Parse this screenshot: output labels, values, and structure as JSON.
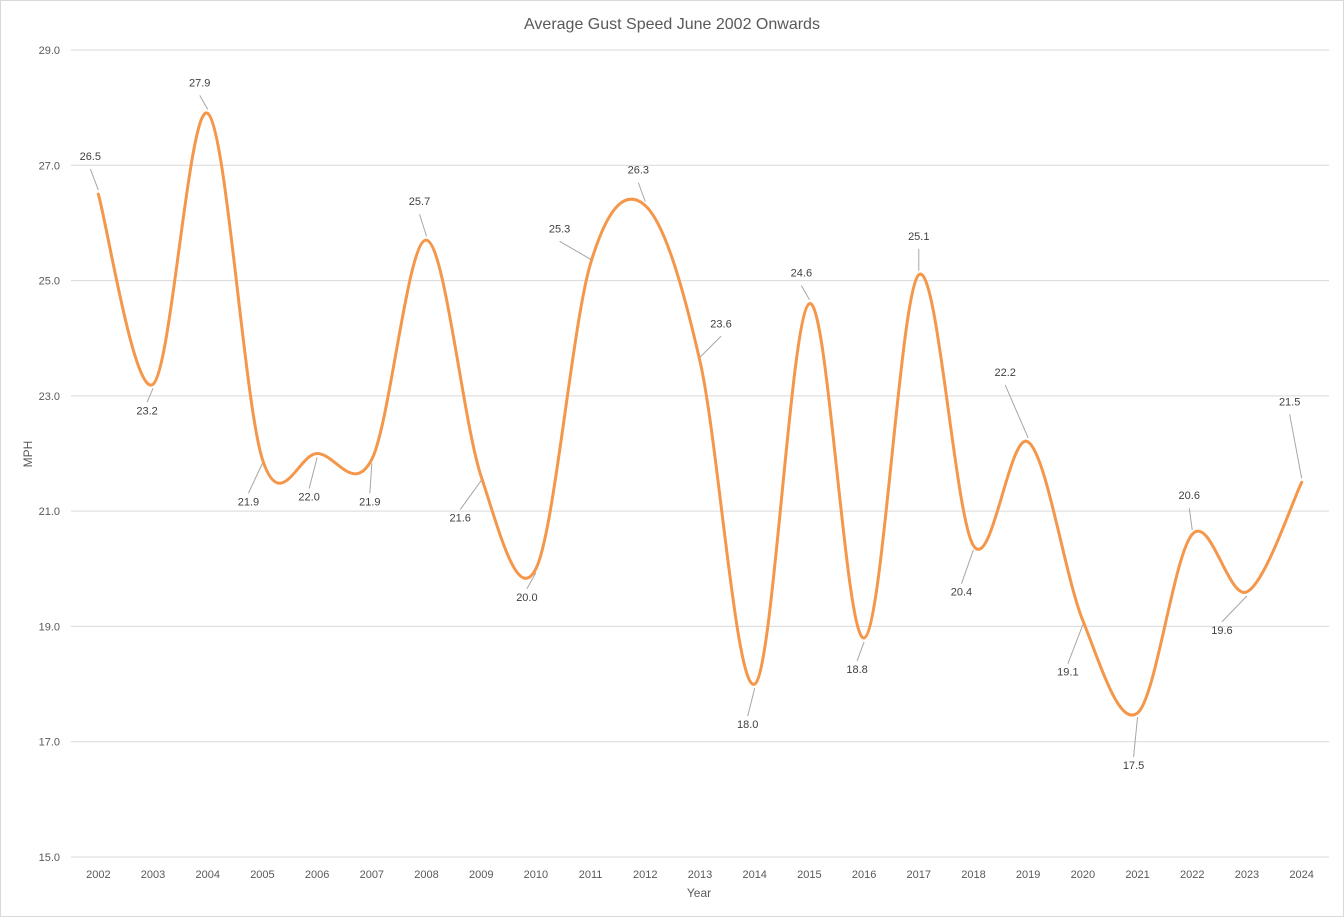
{
  "chart_data": {
    "type": "line",
    "title": "Average Gust Speed June 2002 Onwards",
    "xlabel": "Year",
    "ylabel": "MPH",
    "ylim": [
      15.0,
      29.0
    ],
    "yticks": [
      "15.0",
      "17.0",
      "19.0",
      "21.0",
      "23.0",
      "25.0",
      "27.0",
      "29.0"
    ],
    "grid": true,
    "legend": "none",
    "smooth": true,
    "line_color": "#F4974A",
    "categories": [
      "2002",
      "2003",
      "2004",
      "2005",
      "2006",
      "2007",
      "2008",
      "2009",
      "2010",
      "2011",
      "2012",
      "2013",
      "2014",
      "2015",
      "2016",
      "2017",
      "2018",
      "2019",
      "2020",
      "2021",
      "2022",
      "2023",
      "2024"
    ],
    "values": [
      26.5,
      23.2,
      27.9,
      21.9,
      22.0,
      21.9,
      25.7,
      21.6,
      20.0,
      25.3,
      26.3,
      23.6,
      18.0,
      24.6,
      18.8,
      25.1,
      20.4,
      22.2,
      19.1,
      17.5,
      20.6,
      19.6,
      21.5
    ],
    "data_labels": [
      "26.5",
      "23.2",
      "27.9",
      "21.9",
      "22.0",
      "21.9",
      "25.7",
      "21.6",
      "20.0",
      "25.3",
      "26.3",
      "23.6",
      "18.0",
      "24.6",
      "18.8",
      "25.1",
      "20.4",
      "22.2",
      "19.1",
      "17.5",
      "20.6",
      "19.6",
      "21.5"
    ]
  }
}
